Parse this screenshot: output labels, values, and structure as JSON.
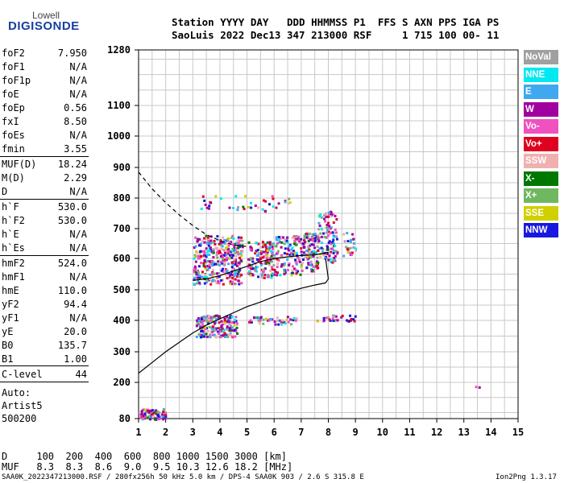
{
  "logo": {
    "top": "Lowell",
    "bottom": "DIGISONDE"
  },
  "header": {
    "line1": "Station YYYY DAY   DDD HHMMSS P1  FFS S AXN PPS IGA PS",
    "line2": "SaoLuis 2022 Dec13 347 213000 RSF     1 715 100 00- 11"
  },
  "params": [
    {
      "k": "foF2",
      "v": "7.950"
    },
    {
      "k": "foF1",
      "v": "N/A"
    },
    {
      "k": "foF1p",
      "v": "N/A"
    },
    {
      "k": "foE",
      "v": "N/A"
    },
    {
      "k": "foEp",
      "v": "0.56"
    },
    {
      "k": "fxI",
      "v": "8.50"
    },
    {
      "k": "foEs",
      "v": "N/A"
    },
    {
      "k": "fmin",
      "v": "3.55"
    },
    {
      "k": "MUF(D)",
      "v": "18.24"
    },
    {
      "k": "M(D)",
      "v": "2.29"
    },
    {
      "k": "D",
      "v": "N/A"
    },
    {
      "k": "h`F",
      "v": "530.0"
    },
    {
      "k": "h`F2",
      "v": "530.0"
    },
    {
      "k": "h`E",
      "v": "N/A"
    },
    {
      "k": "h`Es",
      "v": "N/A"
    },
    {
      "k": "hmF2",
      "v": "524.0"
    },
    {
      "k": "hmF1",
      "v": "N/A"
    },
    {
      "k": "hmE",
      "v": "110.0"
    },
    {
      "k": "yF2",
      "v": "94.4"
    },
    {
      "k": "yF1",
      "v": "N/A"
    },
    {
      "k": "yE",
      "v": "20.0"
    },
    {
      "k": "B0",
      "v": "135.7"
    },
    {
      "k": "B1",
      "v": "1.00"
    },
    {
      "k": "C-level",
      "v": "44"
    }
  ],
  "auto": {
    "line1": "Auto:",
    "line2": "Artist5",
    "line3": "500200"
  },
  "legend": [
    {
      "label": "NoVal",
      "color": "#a0a0a0"
    },
    {
      "label": "NNE",
      "color": "#00e8f0"
    },
    {
      "label": "E",
      "color": "#40a8f0"
    },
    {
      "label": "W",
      "color": "#a000a0"
    },
    {
      "label": "Vo-",
      "color": "#f050c0"
    },
    {
      "label": "Vo+",
      "color": "#e00020"
    },
    {
      "label": "SSW",
      "color": "#f0b0b0"
    },
    {
      "label": "X-",
      "color": "#007800"
    },
    {
      "label": "X+",
      "color": "#70b860"
    },
    {
      "label": "SSE",
      "color": "#d0d000"
    },
    {
      "label": "NNW",
      "color": "#1818e0"
    }
  ],
  "muf_table": {
    "d_line": "D     100  200  400  600  800 1000 1500 3000 [km]",
    "muf_line": "MUF   8.3  8.3  8.6  9.0  9.5 10.3 12.6 18.2 [MHz]"
  },
  "footer": {
    "left": "SAA0K_2022347213000.RSF / 280fx256h 50 kHz 5.0 km / DPS-4 SAA0K 903 / 2.6 S 315.8 E",
    "right": "Ion2Png 1.3.17"
  },
  "chart_data": {
    "type": "scatter",
    "x_ticks": [
      1,
      2,
      3,
      4,
      5,
      6,
      7,
      8,
      9,
      10,
      11,
      12,
      13,
      14,
      15
    ],
    "y_ticks": [
      80,
      200,
      300,
      400,
      500,
      600,
      700,
      800,
      900,
      1000,
      1100,
      1280
    ],
    "xlim": [
      1,
      15
    ],
    "ylim": [
      80,
      1280
    ],
    "grid": true,
    "legend_position": "right",
    "traces": {
      "dashed_profile": {
        "x": [
          1.0,
          1.5,
          2.0,
          2.5,
          3.0,
          3.5,
          4.0,
          4.5,
          5.0
        ],
        "y": [
          885,
          830,
          785,
          745,
          710,
          680,
          660,
          645,
          640
        ]
      },
      "upper_trace": {
        "x": [
          3.0,
          3.5,
          4.0,
          4.5,
          5.0,
          5.5,
          6.0,
          6.5,
          7.0,
          7.5,
          8.0
        ],
        "y": [
          530,
          535,
          545,
          560,
          575,
          590,
          600,
          605,
          610,
          612,
          620
        ]
      },
      "profile_lower": {
        "x": [
          1.0,
          1.5,
          2.0,
          2.5,
          3.0,
          3.5,
          4.0,
          4.5,
          5.0,
          5.5,
          6.0,
          6.5,
          7.0,
          7.5,
          7.9,
          8.0,
          7.9
        ],
        "y": [
          230,
          265,
          300,
          330,
          360,
          385,
          405,
          425,
          445,
          460,
          478,
          492,
          505,
          515,
          522,
          535,
          600
        ]
      }
    },
    "echo_clusters": [
      {
        "x": [
          3.0,
          4.8
        ],
        "y": [
          520,
          680
        ],
        "n": 360
      },
      {
        "x": [
          3.1,
          4.6
        ],
        "y": [
          350,
          420
        ],
        "n": 200
      },
      {
        "x": [
          5.0,
          6.0
        ],
        "y": [
          540,
          660
        ],
        "n": 140
      },
      {
        "x": [
          6.0,
          7.0
        ],
        "y": [
          550,
          680
        ],
        "n": 120
      },
      {
        "x": [
          7.0,
          7.6
        ],
        "y": [
          560,
          690
        ],
        "n": 110
      },
      {
        "x": [
          7.6,
          8.3
        ],
        "y": [
          590,
          760
        ],
        "n": 110
      },
      {
        "x": [
          1.0,
          2.0
        ],
        "y": [
          80,
          115
        ],
        "n": 90
      },
      {
        "x": [
          3.0,
          6.6
        ],
        "y": [
          760,
          810
        ],
        "n": 40
      },
      {
        "x": [
          5.0,
          6.8
        ],
        "y": [
          390,
          415
        ],
        "n": 45
      },
      {
        "x": [
          7.5,
          9.0
        ],
        "y": [
          400,
          420
        ],
        "n": 30
      },
      {
        "x": [
          8.5,
          9.0
        ],
        "y": [
          600,
          700
        ],
        "n": 25
      },
      {
        "x": [
          13.4,
          13.6
        ],
        "y": [
          180,
          190
        ],
        "n": 2
      }
    ]
  }
}
